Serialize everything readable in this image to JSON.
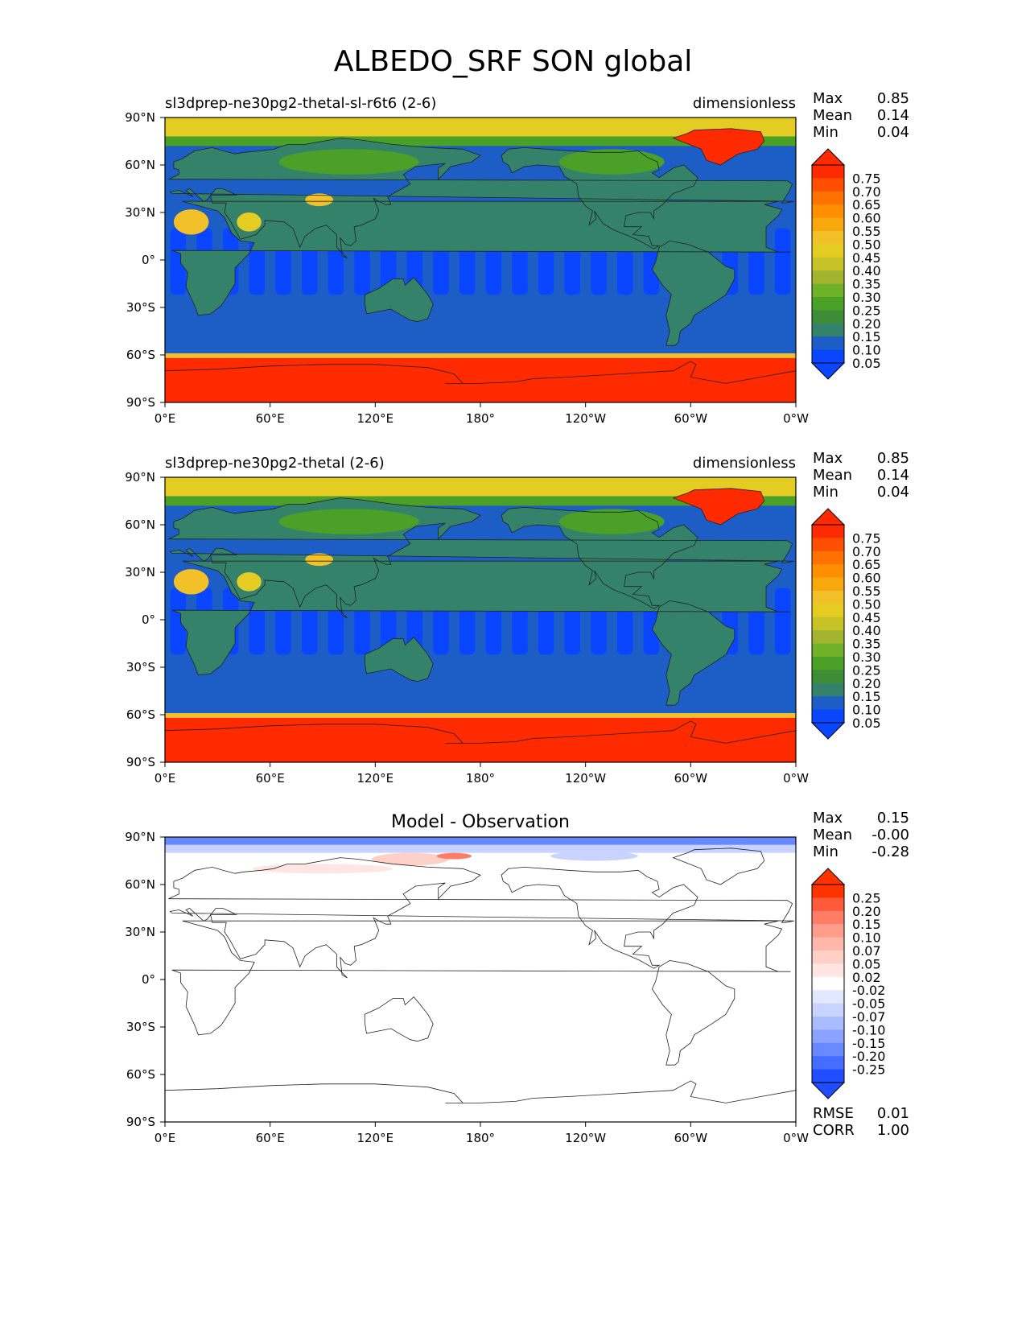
{
  "title": "ALBEDO_SRF SON global",
  "chart_data": [
    {
      "type": "heatmap",
      "left_title": "sl3dprep-ne30pg2-thetal-sl-r6t6 (2-6)",
      "center_title": "",
      "units": "dimensionless",
      "stats": [
        {
          "label": "Max",
          "value": "0.85"
        },
        {
          "label": "Mean",
          "value": "0.14"
        },
        {
          "label": "Min",
          "value": "0.04"
        }
      ],
      "colorbar": {
        "labels": [
          "0.75",
          "0.70",
          "0.65",
          "0.60",
          "0.55",
          "0.50",
          "0.45",
          "0.40",
          "0.35",
          "0.30",
          "0.25",
          "0.20",
          "0.15",
          "0.10",
          "0.05"
        ],
        "colors": [
          "#ff2a00",
          "#ff4f00",
          "#ff7200",
          "#ff8f00",
          "#f6a80d",
          "#f2c12a",
          "#e5cc23",
          "#c8c229",
          "#a3b42e",
          "#6fb22a",
          "#4ba127",
          "#3d8d37",
          "#35826a",
          "#1c5ec6",
          "#0a46ff"
        ],
        "extend": "both"
      },
      "x_ticks": [
        "0°E",
        "60°E",
        "120°E",
        "180°",
        "120°W",
        "60°W",
        "0°W"
      ],
      "y_ticks": [
        "90°N",
        "60°N",
        "30°N",
        "0°",
        "30°S",
        "60°S",
        "90°S"
      ],
      "xlim": [
        0,
        360
      ],
      "ylim": [
        -90,
        90
      ],
      "footer_stats": []
    },
    {
      "type": "heatmap",
      "left_title": "sl3dprep-ne30pg2-thetal (2-6)",
      "center_title": "",
      "units": "dimensionless",
      "stats": [
        {
          "label": "Max",
          "value": "0.85"
        },
        {
          "label": "Mean",
          "value": "0.14"
        },
        {
          "label": "Min",
          "value": "0.04"
        }
      ],
      "colorbar": {
        "labels": [
          "0.75",
          "0.70",
          "0.65",
          "0.60",
          "0.55",
          "0.50",
          "0.45",
          "0.40",
          "0.35",
          "0.30",
          "0.25",
          "0.20",
          "0.15",
          "0.10",
          "0.05"
        ],
        "colors": [
          "#ff2a00",
          "#ff4f00",
          "#ff7200",
          "#ff8f00",
          "#f6a80d",
          "#f2c12a",
          "#e5cc23",
          "#c8c229",
          "#a3b42e",
          "#6fb22a",
          "#4ba127",
          "#3d8d37",
          "#35826a",
          "#1c5ec6",
          "#0a46ff"
        ],
        "extend": "both"
      },
      "x_ticks": [
        "0°E",
        "60°E",
        "120°E",
        "180°",
        "120°W",
        "60°W",
        "0°W"
      ],
      "y_ticks": [
        "90°N",
        "60°N",
        "30°N",
        "0°",
        "30°S",
        "60°S",
        "90°S"
      ],
      "xlim": [
        0,
        360
      ],
      "ylim": [
        -90,
        90
      ],
      "footer_stats": []
    },
    {
      "type": "heatmap",
      "left_title": "",
      "center_title": "Model - Observation",
      "units": "",
      "stats": [
        {
          "label": "Max",
          "value": "0.15"
        },
        {
          "label": "Mean",
          "value": "-0.00"
        },
        {
          "label": "Min",
          "value": "-0.28"
        }
      ],
      "colorbar": {
        "labels": [
          "0.25",
          "0.20",
          "0.15",
          "0.10",
          "0.07",
          "0.05",
          "0.02",
          "-0.02",
          "-0.05",
          "-0.07",
          "-0.10",
          "-0.15",
          "-0.20",
          "-0.25"
        ],
        "colors": [
          "#ff3300",
          "#ff5a3c",
          "#ff7d66",
          "#ff9d8c",
          "#ffb8aa",
          "#ffd0c8",
          "#ffe6e2",
          "#ffffff",
          "#e2e8ff",
          "#c8d4ff",
          "#a9bcff",
          "#8aa3ff",
          "#6889ff",
          "#456dff",
          "#1f4dff"
        ],
        "extend": "both"
      },
      "x_ticks": [
        "0°E",
        "60°E",
        "120°E",
        "180°",
        "120°W",
        "60°W",
        "0°W"
      ],
      "y_ticks": [
        "90°N",
        "60°N",
        "30°N",
        "0°",
        "30°S",
        "60°S",
        "90°S"
      ],
      "xlim": [
        0,
        360
      ],
      "ylim": [
        -90,
        90
      ],
      "footer_stats": [
        {
          "label": "RMSE",
          "value": "0.01"
        },
        {
          "label": "CORR",
          "value": "1.00"
        }
      ]
    }
  ]
}
